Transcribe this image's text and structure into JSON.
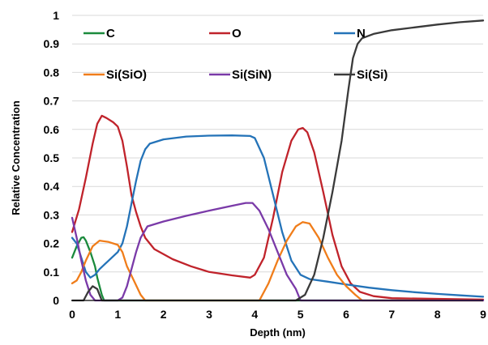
{
  "chart_data": {
    "type": "line",
    "title": "",
    "xlabel": "Depth (nm)",
    "ylabel": "Relative Concentration",
    "xlim": [
      0,
      9
    ],
    "ylim": [
      0,
      1
    ],
    "xticks": [
      "0",
      "1",
      "2",
      "3",
      "4",
      "5",
      "6",
      "7",
      "8",
      "9"
    ],
    "yticks": [
      "0",
      "0.1",
      "0.2",
      "0.3",
      "0.4",
      "0.5",
      "0.6",
      "0.7",
      "0.8",
      "0.9",
      "1"
    ],
    "grid": {
      "horizontal": true,
      "vertical": false
    },
    "legend": {
      "placement": "top",
      "columns": 3
    },
    "series": [
      {
        "name": "C",
        "color": "#1a8a3c",
        "points": [
          [
            0,
            0.15
          ],
          [
            0.1,
            0.19
          ],
          [
            0.2,
            0.22
          ],
          [
            0.25,
            0.222
          ],
          [
            0.3,
            0.21
          ],
          [
            0.4,
            0.17
          ],
          [
            0.5,
            0.12
          ],
          [
            0.55,
            0.08
          ],
          [
            0.6,
            0.05
          ],
          [
            0.65,
            0.02
          ],
          [
            0.7,
            0.0
          ],
          [
            9,
            0.0
          ]
        ]
      },
      {
        "name": "O",
        "color": "#c0232b",
        "points": [
          [
            0,
            0.24
          ],
          [
            0.15,
            0.32
          ],
          [
            0.3,
            0.43
          ],
          [
            0.45,
            0.55
          ],
          [
            0.55,
            0.62
          ],
          [
            0.65,
            0.648
          ],
          [
            0.75,
            0.64
          ],
          [
            0.9,
            0.625
          ],
          [
            1.0,
            0.61
          ],
          [
            1.1,
            0.56
          ],
          [
            1.2,
            0.47
          ],
          [
            1.3,
            0.37
          ],
          [
            1.4,
            0.31
          ],
          [
            1.5,
            0.26
          ],
          [
            1.6,
            0.22
          ],
          [
            1.8,
            0.18
          ],
          [
            2.2,
            0.145
          ],
          [
            2.6,
            0.12
          ],
          [
            3.0,
            0.1
          ],
          [
            3.5,
            0.088
          ],
          [
            3.9,
            0.08
          ],
          [
            4.0,
            0.09
          ],
          [
            4.2,
            0.15
          ],
          [
            4.4,
            0.29
          ],
          [
            4.6,
            0.45
          ],
          [
            4.8,
            0.56
          ],
          [
            4.95,
            0.6
          ],
          [
            5.05,
            0.605
          ],
          [
            5.15,
            0.59
          ],
          [
            5.3,
            0.52
          ],
          [
            5.5,
            0.38
          ],
          [
            5.7,
            0.23
          ],
          [
            5.9,
            0.12
          ],
          [
            6.1,
            0.06
          ],
          [
            6.3,
            0.03
          ],
          [
            6.6,
            0.015
          ],
          [
            7.0,
            0.008
          ],
          [
            9.0,
            0.003
          ]
        ]
      },
      {
        "name": "N",
        "color": "#2473b8",
        "points": [
          [
            0,
            0.22
          ],
          [
            0.1,
            0.2
          ],
          [
            0.2,
            0.15
          ],
          [
            0.3,
            0.1
          ],
          [
            0.4,
            0.08
          ],
          [
            0.5,
            0.09
          ],
          [
            0.6,
            0.11
          ],
          [
            0.8,
            0.14
          ],
          [
            1.0,
            0.17
          ],
          [
            1.1,
            0.2
          ],
          [
            1.2,
            0.26
          ],
          [
            1.3,
            0.34
          ],
          [
            1.4,
            0.42
          ],
          [
            1.5,
            0.49
          ],
          [
            1.6,
            0.53
          ],
          [
            1.7,
            0.55
          ],
          [
            2.0,
            0.565
          ],
          [
            2.5,
            0.575
          ],
          [
            3.0,
            0.578
          ],
          [
            3.5,
            0.579
          ],
          [
            3.9,
            0.577
          ],
          [
            4.0,
            0.57
          ],
          [
            4.2,
            0.5
          ],
          [
            4.4,
            0.37
          ],
          [
            4.6,
            0.24
          ],
          [
            4.8,
            0.14
          ],
          [
            5.0,
            0.09
          ],
          [
            5.2,
            0.075
          ],
          [
            5.6,
            0.066
          ],
          [
            6.0,
            0.056
          ],
          [
            6.5,
            0.045
          ],
          [
            7.0,
            0.036
          ],
          [
            7.5,
            0.029
          ],
          [
            8.0,
            0.023
          ],
          [
            8.5,
            0.018
          ],
          [
            9.0,
            0.013
          ]
        ]
      },
      {
        "name": "Si(SiO)",
        "color": "#f07d1a",
        "points": [
          [
            0,
            0.06
          ],
          [
            0.1,
            0.07
          ],
          [
            0.2,
            0.1
          ],
          [
            0.3,
            0.14
          ],
          [
            0.45,
            0.19
          ],
          [
            0.6,
            0.21
          ],
          [
            0.8,
            0.205
          ],
          [
            1.0,
            0.195
          ],
          [
            1.1,
            0.17
          ],
          [
            1.2,
            0.12
          ],
          [
            1.35,
            0.07
          ],
          [
            1.5,
            0.02
          ],
          [
            1.6,
            0.0
          ],
          [
            4.1,
            0.0
          ],
          [
            4.3,
            0.06
          ],
          [
            4.5,
            0.14
          ],
          [
            4.7,
            0.21
          ],
          [
            4.9,
            0.26
          ],
          [
            5.05,
            0.275
          ],
          [
            5.2,
            0.27
          ],
          [
            5.4,
            0.22
          ],
          [
            5.6,
            0.15
          ],
          [
            5.8,
            0.09
          ],
          [
            6.0,
            0.05
          ],
          [
            6.2,
            0.02
          ],
          [
            6.35,
            0.0
          ],
          [
            9.0,
            0.0
          ]
        ]
      },
      {
        "name": "Si(SiN)",
        "color": "#7a3aa8",
        "points": [
          [
            0,
            0.29
          ],
          [
            0.1,
            0.22
          ],
          [
            0.2,
            0.14
          ],
          [
            0.3,
            0.07
          ],
          [
            0.4,
            0.02
          ],
          [
            0.5,
            0.0
          ],
          [
            1.0,
            0.0
          ],
          [
            1.1,
            0.01
          ],
          [
            1.2,
            0.05
          ],
          [
            1.3,
            0.11
          ],
          [
            1.4,
            0.17
          ],
          [
            1.5,
            0.22
          ],
          [
            1.65,
            0.26
          ],
          [
            2.0,
            0.277
          ],
          [
            2.5,
            0.297
          ],
          [
            3.0,
            0.315
          ],
          [
            3.5,
            0.332
          ],
          [
            3.8,
            0.342
          ],
          [
            3.95,
            0.342
          ],
          [
            4.1,
            0.315
          ],
          [
            4.3,
            0.25
          ],
          [
            4.5,
            0.17
          ],
          [
            4.7,
            0.09
          ],
          [
            4.9,
            0.04
          ],
          [
            5.0,
            0.0
          ],
          [
            9.0,
            0.0
          ]
        ]
      },
      {
        "name": "Si(Si)",
        "color": "#3a3a3a",
        "points": [
          [
            0,
            0.0
          ],
          [
            0.25,
            0.0
          ],
          [
            0.35,
            0.03
          ],
          [
            0.45,
            0.05
          ],
          [
            0.55,
            0.04
          ],
          [
            0.65,
            0.0
          ],
          [
            4.9,
            0.0
          ],
          [
            5.1,
            0.02
          ],
          [
            5.3,
            0.09
          ],
          [
            5.5,
            0.22
          ],
          [
            5.7,
            0.38
          ],
          [
            5.9,
            0.56
          ],
          [
            6.05,
            0.74
          ],
          [
            6.15,
            0.85
          ],
          [
            6.25,
            0.9
          ],
          [
            6.35,
            0.92
          ],
          [
            6.6,
            0.935
          ],
          [
            7.0,
            0.948
          ],
          [
            7.5,
            0.958
          ],
          [
            8.0,
            0.968
          ],
          [
            8.5,
            0.976
          ],
          [
            9.0,
            0.982
          ]
        ]
      }
    ]
  }
}
